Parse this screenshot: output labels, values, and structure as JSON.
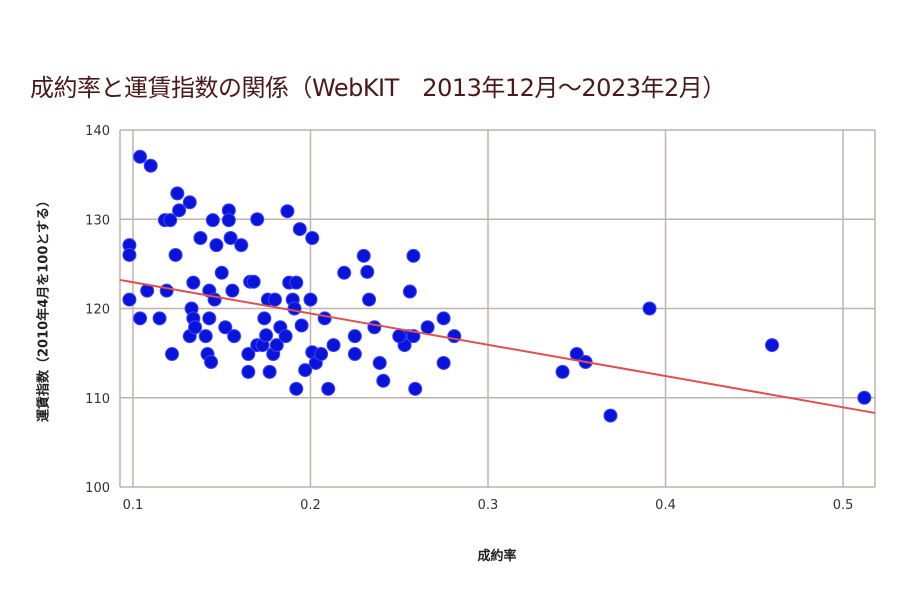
{
  "chart_data": {
    "type": "scatter",
    "title": "成約率と運賃指数の関係（WebKIT　2013年12月～2023年2月）",
    "xlabel": "成約率",
    "ylabel": "運賃指数（2010年4月を100とする）",
    "xlim": [
      0.0927,
      0.518
    ],
    "ylim": [
      100,
      140
    ],
    "xticks": [
      "0.1",
      "0.2",
      "0.3",
      "0.4",
      "0.5"
    ],
    "xtick_values": [
      0.1,
      0.2,
      0.3,
      0.4,
      0.5
    ],
    "yticks": [
      "100",
      "110",
      "120",
      "130",
      "140"
    ],
    "ytick_values": [
      100,
      110,
      120,
      130,
      140
    ],
    "grid": true,
    "point_color": "#0a14d8",
    "trend_color": "#e05050",
    "trendline": {
      "x": [
        0.0927,
        0.518
      ],
      "y": [
        123.2,
        108.3
      ]
    },
    "points": [
      [
        0.098,
        127.1
      ],
      [
        0.098,
        126.0
      ],
      [
        0.098,
        121.0
      ],
      [
        0.104,
        137.0
      ],
      [
        0.11,
        136.0
      ],
      [
        0.104,
        118.9
      ],
      [
        0.108,
        122.0
      ],
      [
        0.115,
        118.9
      ],
      [
        0.118,
        129.9
      ],
      [
        0.119,
        122.0
      ],
      [
        0.121,
        129.9
      ],
      [
        0.124,
        126.0
      ],
      [
        0.122,
        114.9
      ],
      [
        0.125,
        132.9
      ],
      [
        0.126,
        131.0
      ],
      [
        0.132,
        131.9
      ],
      [
        0.133,
        120.0
      ],
      [
        0.134,
        122.9
      ],
      [
        0.132,
        116.9
      ],
      [
        0.134,
        118.9
      ],
      [
        0.135,
        117.9
      ],
      [
        0.138,
        127.9
      ],
      [
        0.142,
        114.9
      ],
      [
        0.143,
        122.0
      ],
      [
        0.145,
        129.9
      ],
      [
        0.143,
        118.9
      ],
      [
        0.141,
        116.9
      ],
      [
        0.144,
        114.0
      ],
      [
        0.146,
        121.0
      ],
      [
        0.147,
        127.1
      ],
      [
        0.15,
        124.0
      ],
      [
        0.152,
        117.9
      ],
      [
        0.154,
        131.0
      ],
      [
        0.154,
        129.9
      ],
      [
        0.155,
        127.9
      ],
      [
        0.156,
        122.0
      ],
      [
        0.157,
        116.9
      ],
      [
        0.161,
        127.1
      ],
      [
        0.165,
        114.9
      ],
      [
        0.165,
        112.9
      ],
      [
        0.166,
        123.0
      ],
      [
        0.168,
        123.0
      ],
      [
        0.17,
        115.9
      ],
      [
        0.173,
        115.9
      ],
      [
        0.175,
        117.0
      ],
      [
        0.17,
        130.0
      ],
      [
        0.174,
        118.9
      ],
      [
        0.176,
        121.0
      ],
      [
        0.177,
        112.9
      ],
      [
        0.179,
        114.9
      ],
      [
        0.181,
        115.9
      ],
      [
        0.18,
        121.0
      ],
      [
        0.183,
        117.9
      ],
      [
        0.186,
        116.9
      ],
      [
        0.187,
        130.9
      ],
      [
        0.188,
        122.9
      ],
      [
        0.19,
        121.0
      ],
      [
        0.191,
        120.0
      ],
      [
        0.192,
        122.9
      ],
      [
        0.194,
        128.9
      ],
      [
        0.195,
        118.1
      ],
      [
        0.197,
        113.1
      ],
      [
        0.192,
        111.0
      ],
      [
        0.201,
        127.9
      ],
      [
        0.2,
        121.0
      ],
      [
        0.201,
        115.1
      ],
      [
        0.203,
        113.9
      ],
      [
        0.206,
        114.9
      ],
      [
        0.208,
        118.9
      ],
      [
        0.21,
        111.0
      ],
      [
        0.213,
        115.9
      ],
      [
        0.219,
        124.0
      ],
      [
        0.225,
        114.9
      ],
      [
        0.225,
        116.9
      ],
      [
        0.23,
        125.9
      ],
      [
        0.232,
        124.1
      ],
      [
        0.233,
        121.0
      ],
      [
        0.236,
        117.9
      ],
      [
        0.239,
        113.9
      ],
      [
        0.241,
        111.9
      ],
      [
        0.258,
        125.9
      ],
      [
        0.256,
        121.9
      ],
      [
        0.255,
        116.9
      ],
      [
        0.253,
        115.9
      ],
      [
        0.258,
        116.9
      ],
      [
        0.25,
        116.9
      ],
      [
        0.259,
        111.0
      ],
      [
        0.266,
        117.9
      ],
      [
        0.275,
        118.9
      ],
      [
        0.275,
        113.9
      ],
      [
        0.281,
        116.9
      ],
      [
        0.342,
        112.9
      ],
      [
        0.35,
        114.9
      ],
      [
        0.355,
        114.0
      ],
      [
        0.369,
        108.0
      ],
      [
        0.391,
        120.0
      ],
      [
        0.46,
        115.9
      ],
      [
        0.512,
        110.0
      ]
    ]
  }
}
